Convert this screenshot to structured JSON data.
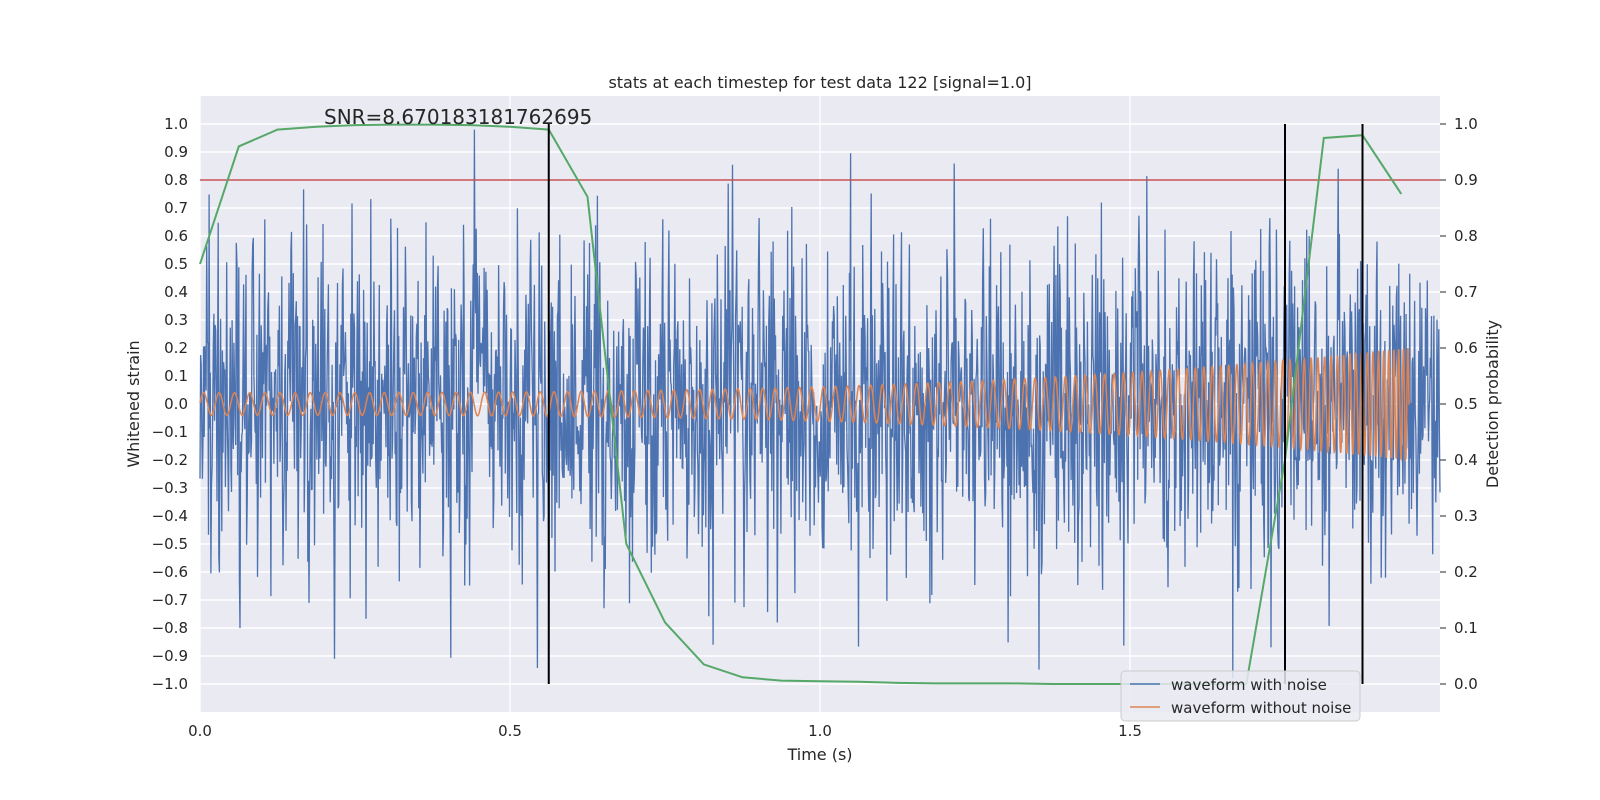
{
  "chart_data": {
    "type": "line",
    "title": "stats at each timestep for test data 122 [signal=1.0]",
    "annotation": "SNR=8.670183181762695",
    "xlabel": "Time (s)",
    "ylabel": "Whitened strain",
    "ylabel_right": "Detection probability",
    "xlim": [
      0.0,
      2.0
    ],
    "ylim": [
      -1.1,
      1.1
    ],
    "ylim_right": [
      -0.05,
      1.05
    ],
    "x_ticks": [
      0.0,
      0.5,
      1.0,
      1.5
    ],
    "x_tick_labels": [
      "0.0",
      "0.5",
      "1.0",
      "1.5"
    ],
    "y_ticks": [
      -1.0,
      -0.9,
      -0.8,
      -0.7,
      -0.6,
      -0.5,
      -0.4,
      -0.3,
      -0.2,
      -0.1,
      0.0,
      0.1,
      0.2,
      0.3,
      0.4,
      0.5,
      0.6,
      0.7,
      0.8,
      0.9,
      1.0
    ],
    "y_tick_labels": [
      "−1.0",
      "−0.9",
      "−0.8",
      "−0.7",
      "−0.6",
      "−0.5",
      "−0.4",
      "−0.3",
      "−0.2",
      "−0.1",
      "0.0",
      "0.1",
      "0.2",
      "0.3",
      "0.4",
      "0.5",
      "0.6",
      "0.7",
      "0.8",
      "0.9",
      "1.0"
    ],
    "y_ticks_right": [
      0.0,
      0.1,
      0.2,
      0.3,
      0.4,
      0.5,
      0.6,
      0.7,
      0.8,
      0.9,
      1.0
    ],
    "y_tick_labels_right": [
      "0.0",
      "0.1",
      "0.2",
      "0.3",
      "0.4",
      "0.5",
      "0.6",
      "0.7",
      "0.8",
      "0.9",
      "1.0"
    ],
    "grid": true,
    "threshold_line": {
      "axis": "right",
      "value": 0.9,
      "color": "#c44e52"
    },
    "detection_markers_x": [
      0.5625,
      1.75,
      1.875
    ],
    "detection_markers_ylim": [
      -1.0,
      1.0
    ],
    "series": [
      {
        "name": "waveform with noise",
        "axis": "left",
        "color": "#4c72b0",
        "x_range": [
          0.0,
          2.0
        ],
        "amplitude_std": 0.3,
        "n_points": 2048,
        "seed": 122
      },
      {
        "name": "waveform without noise",
        "axis": "left",
        "color": "#dd8452",
        "x_range": [
          0.0,
          1.95
        ],
        "start_frequency_hz": 40,
        "start_amplitude": 0.04,
        "end_amplitude": 0.2
      },
      {
        "name": "detection probability",
        "axis": "right",
        "color": "#55a868",
        "x": [
          0.0,
          0.0625,
          0.125,
          0.1875,
          0.25,
          0.3125,
          0.375,
          0.4375,
          0.5,
          0.5625,
          0.625,
          0.6875,
          0.75,
          0.8125,
          0.875,
          0.9375,
          1.0,
          1.0625,
          1.125,
          1.1875,
          1.25,
          1.3125,
          1.375,
          1.4375,
          1.5,
          1.5625,
          1.625,
          1.6875,
          1.75,
          1.8125,
          1.875,
          1.9375
        ],
        "values": [
          0.75,
          0.96,
          0.99,
          0.995,
          0.998,
          0.999,
          0.999,
          0.998,
          0.995,
          0.99,
          0.87,
          0.25,
          0.11,
          0.035,
          0.012,
          0.006,
          0.005,
          0.004,
          0.002,
          0.001,
          0.001,
          0.001,
          0.0,
          0.0,
          0.0,
          0.0,
          0.0,
          0.0,
          0.4,
          0.975,
          0.98,
          0.875
        ]
      }
    ],
    "legend": {
      "position": "lower-right",
      "entries": [
        "waveform with noise",
        "waveform without noise"
      ]
    },
    "colors": {
      "background": "#eaeaf2",
      "grid": "#ffffff",
      "markers": "#000000"
    }
  }
}
